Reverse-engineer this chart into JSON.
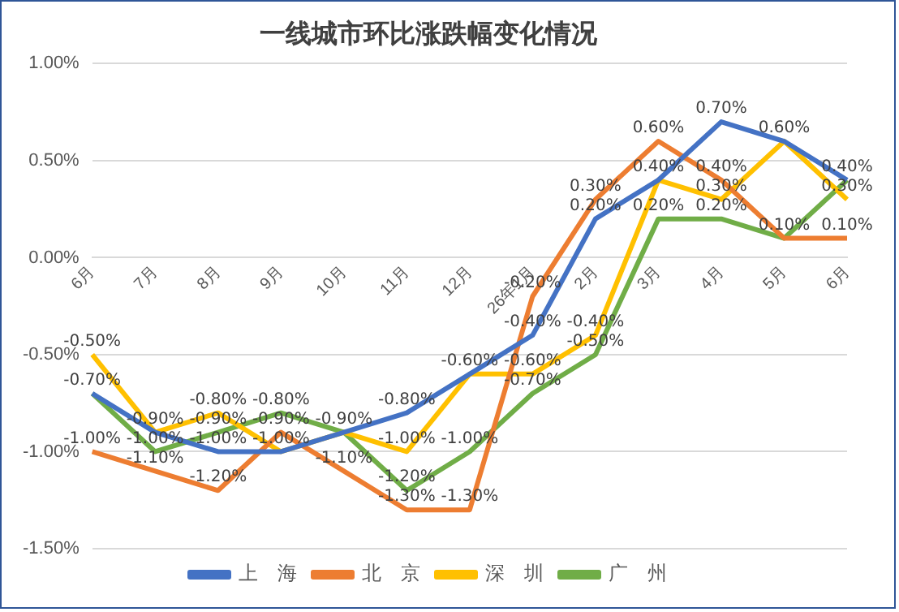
{
  "chart_data": {
    "type": "line",
    "title": "一线城市环比涨跌幅变化情况",
    "categories": [
      "6月",
      "7月",
      "8月",
      "9月",
      "10月",
      "11月",
      "12月",
      "26年1月",
      "2月",
      "3月",
      "4月",
      "5月",
      "6月"
    ],
    "series": [
      {
        "name": "上　海",
        "color": "#4472c4",
        "values": [
          -0.7,
          -0.9,
          -1.0,
          -1.0,
          -0.9,
          -0.8,
          -0.6,
          -0.4,
          0.2,
          0.4,
          0.7,
          0.6,
          0.4
        ],
        "value_labels": [
          "-0.70%",
          "-0.90%",
          "-1.00%",
          "-1.00%",
          "-0.90%",
          "-0.80%",
          "-0.60%",
          "-0.40%",
          "0.20%",
          "0.40%",
          "0.70%",
          "0.60%",
          "0.40%"
        ]
      },
      {
        "name": "北　京",
        "color": "#ed7d31",
        "values": [
          -1.0,
          -1.1,
          -1.2,
          -0.9,
          -1.1,
          -1.3,
          -1.3,
          -0.2,
          0.3,
          0.6,
          0.4,
          0.1,
          0.1
        ],
        "value_labels": [
          "-1.00%",
          "-1.10%",
          "-1.20%",
          "-0.90%",
          "-1.10%",
          "-1.30%",
          "-1.30%",
          "-0.20%",
          "0.30%",
          "0.60%",
          "0.40%",
          "0.10%",
          "0.10%"
        ]
      },
      {
        "name": "深　圳",
        "color": "#ffc000",
        "values": [
          -0.5,
          -0.9,
          -0.8,
          -1.0,
          -0.9,
          -1.0,
          -0.6,
          -0.6,
          -0.4,
          0.4,
          0.3,
          0.6,
          0.3
        ],
        "value_labels": [
          "-0.50%",
          null,
          "-0.80%",
          null,
          null,
          "-1.00%",
          null,
          "-0.60%",
          "-0.40%",
          null,
          "0.30%",
          null,
          "0.30%"
        ]
      },
      {
        "name": "广　州",
        "color": "#70ad47",
        "values": [
          -0.7,
          -1.0,
          -0.9,
          -0.8,
          -0.9,
          -1.2,
          -1.0,
          -0.7,
          -0.5,
          0.2,
          0.2,
          0.1,
          0.4
        ],
        "value_labels": [
          null,
          "-1.00%",
          "-0.90%",
          "-0.80%",
          null,
          "-1.20%",
          "-1.00%",
          "-0.70%",
          "-0.50%",
          "0.20%",
          "0.20%",
          null,
          null
        ]
      }
    ],
    "ylim": [
      -1.5,
      1.0
    ],
    "yticks": [
      {
        "value": -1.5,
        "label": "-1.50%"
      },
      {
        "value": -1.0,
        "label": "-1.00%"
      },
      {
        "value": -0.5,
        "label": "-0.50%"
      },
      {
        "value": 0,
        "label": "0.00%"
      },
      {
        "value": 0.5,
        "label": "0.50%"
      },
      {
        "value": 1.0,
        "label": "1.00%"
      }
    ],
    "grid": "y",
    "legend": "bottom",
    "marker": "none",
    "line_style": "solid"
  }
}
